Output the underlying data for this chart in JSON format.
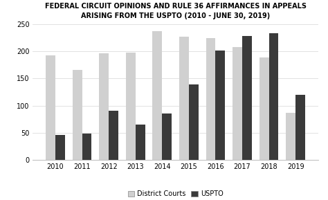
{
  "title": "FEDERAL CIRCUIT OPINIONS AND RULE 36 AFFIRMANCES IN APPEALS\nARISING FROM THE USPTO (2010 - JUNE 30, 2019)",
  "years": [
    "2010",
    "2011",
    "2012",
    "2013",
    "2014",
    "2015",
    "2016",
    "2017",
    "2018",
    "2019"
  ],
  "district_courts": [
    192,
    165,
    196,
    198,
    237,
    227,
    224,
    207,
    189,
    87
  ],
  "uspto": [
    46,
    49,
    91,
    65,
    86,
    139,
    201,
    228,
    233,
    120
  ],
  "district_color": "#d0d0d0",
  "uspto_color": "#3a3a3a",
  "ylim": [
    0,
    250
  ],
  "yticks": [
    0,
    50,
    100,
    150,
    200,
    250
  ],
  "legend_labels": [
    "District Courts",
    "USPTO"
  ],
  "bar_width": 0.36,
  "background_color": "#ffffff",
  "title_fontsize": 7.0,
  "tick_fontsize": 7.0,
  "legend_fontsize": 7.0
}
